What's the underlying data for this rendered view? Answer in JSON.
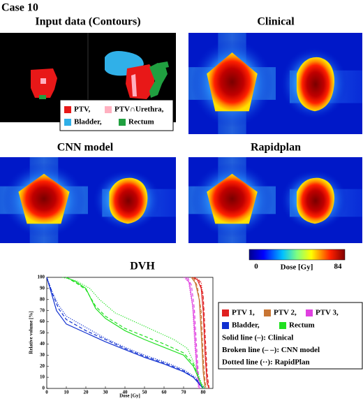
{
  "header": {
    "case": "Case 10"
  },
  "panels": [
    {
      "title": "Input data (Contours)"
    },
    {
      "title": "Clinical"
    },
    {
      "title": "CNN model"
    },
    {
      "title": "Rapidplan"
    }
  ],
  "contour_legend": [
    {
      "label": "PTV,",
      "color": "#e81818"
    },
    {
      "label": "PTV∩Urethra,",
      "color": "#ffb0c0"
    },
    {
      "label": "Bladder,",
      "color": "#30b0e8"
    },
    {
      "label": "Rectum",
      "color": "#20a040"
    }
  ],
  "colorbar": {
    "min": 0,
    "max": 84,
    "label": "Dose [Gy]"
  },
  "chart_data": {
    "type": "line",
    "title": "DVH",
    "x_label": "Dose [Gy]",
    "y_label": "Relative volume [%]",
    "xlim": [
      0,
      85
    ],
    "ylim": [
      0,
      100
    ],
    "xticks": [
      0,
      10,
      20,
      30,
      40,
      50,
      60,
      70,
      80
    ],
    "yticks": [
      0,
      10,
      20,
      30,
      40,
      50,
      60,
      70,
      80,
      90,
      100
    ],
    "structures": [
      {
        "name": "PTV 1,",
        "color": "#e02020"
      },
      {
        "name": "PTV 2,",
        "color": "#c87533"
      },
      {
        "name": "PTV 3,",
        "color": "#e040e0"
      },
      {
        "name": "Bladder,",
        "color": "#1030d0"
      },
      {
        "name": "Rectum",
        "color": "#20e020"
      }
    ],
    "plans": [
      {
        "label": "Solid line (–): Clinical",
        "dash": "solid"
      },
      {
        "label": "Broken line (– –): CNN model",
        "dash": "dashed"
      },
      {
        "label": "Dotted line (··): RapidPlan",
        "dash": "dotted"
      }
    ],
    "series": [
      {
        "structure": 0,
        "plan": 0,
        "x": [
          74,
          77,
          79,
          80,
          81,
          82,
          83
        ],
        "values": [
          100,
          98,
          90,
          70,
          30,
          5,
          0
        ]
      },
      {
        "structure": 0,
        "plan": 1,
        "x": [
          75,
          78,
          80,
          81,
          82,
          83
        ],
        "values": [
          100,
          97,
          85,
          50,
          15,
          0
        ]
      },
      {
        "structure": 0,
        "plan": 2,
        "x": [
          76,
          79,
          80,
          81,
          82,
          83
        ],
        "values": [
          100,
          96,
          80,
          40,
          8,
          0
        ]
      },
      {
        "structure": 1,
        "plan": 0,
        "x": [
          74,
          76,
          78,
          79,
          80,
          81
        ],
        "values": [
          100,
          95,
          80,
          50,
          15,
          0
        ]
      },
      {
        "structure": 1,
        "plan": 1,
        "x": [
          75,
          77,
          79,
          80,
          81,
          82
        ],
        "values": [
          100,
          92,
          70,
          30,
          5,
          0
        ]
      },
      {
        "structure": 1,
        "plan": 2,
        "x": [
          74,
          76.5,
          78.5,
          79.5,
          80.5,
          81.5
        ],
        "values": [
          100,
          94,
          75,
          40,
          10,
          0
        ]
      },
      {
        "structure": 2,
        "plan": 0,
        "x": [
          71,
          73,
          75,
          76,
          77,
          78
        ],
        "values": [
          100,
          95,
          70,
          40,
          15,
          0
        ]
      },
      {
        "structure": 2,
        "plan": 1,
        "x": [
          72,
          74,
          75.5,
          76.5,
          77.5,
          78.5
        ],
        "values": [
          100,
          93,
          72,
          42,
          14,
          0
        ]
      },
      {
        "structure": 2,
        "plan": 2,
        "x": [
          70,
          72.5,
          74.5,
          75.5,
          76.5,
          77.5
        ],
        "values": [
          100,
          96,
          75,
          45,
          18,
          0
        ]
      },
      {
        "structure": 3,
        "plan": 0,
        "x": [
          0,
          2,
          5,
          10,
          20,
          30,
          40,
          50,
          60,
          70,
          75,
          78,
          80
        ],
        "values": [
          100,
          88,
          70,
          58,
          50,
          42,
          35,
          28,
          22,
          15,
          10,
          4,
          0
        ]
      },
      {
        "structure": 3,
        "plan": 1,
        "x": [
          0,
          3,
          6,
          10,
          20,
          30,
          40,
          50,
          60,
          70,
          76,
          79,
          80
        ],
        "values": [
          100,
          85,
          72,
          62,
          52,
          44,
          36,
          29,
          23,
          16,
          9,
          2,
          0
        ]
      },
      {
        "structure": 3,
        "plan": 2,
        "x": [
          0,
          3,
          6,
          10,
          20,
          30,
          40,
          50,
          60,
          70,
          76,
          79,
          81
        ],
        "values": [
          100,
          86,
          75,
          65,
          55,
          45,
          37,
          30,
          24,
          17,
          10,
          3,
          0
        ]
      },
      {
        "structure": 4,
        "plan": 0,
        "x": [
          10,
          15,
          20,
          25,
          30,
          40,
          50,
          60,
          70,
          75,
          78,
          80
        ],
        "values": [
          100,
          96,
          90,
          72,
          63,
          52,
          44,
          37,
          30,
          20,
          8,
          0
        ]
      },
      {
        "structure": 4,
        "plan": 1,
        "x": [
          10,
          15,
          20,
          25,
          30,
          40,
          50,
          60,
          70,
          75,
          78,
          80
        ],
        "values": [
          100,
          95,
          89,
          74,
          65,
          54,
          47,
          40,
          32,
          22,
          8,
          0
        ]
      },
      {
        "structure": 4,
        "plan": 2,
        "x": [
          8,
          15,
          22,
          27,
          35,
          45,
          55,
          65,
          72,
          76,
          79,
          81
        ],
        "values": [
          100,
          97,
          90,
          80,
          68,
          60,
          52,
          44,
          36,
          20,
          5,
          0
        ]
      }
    ]
  }
}
